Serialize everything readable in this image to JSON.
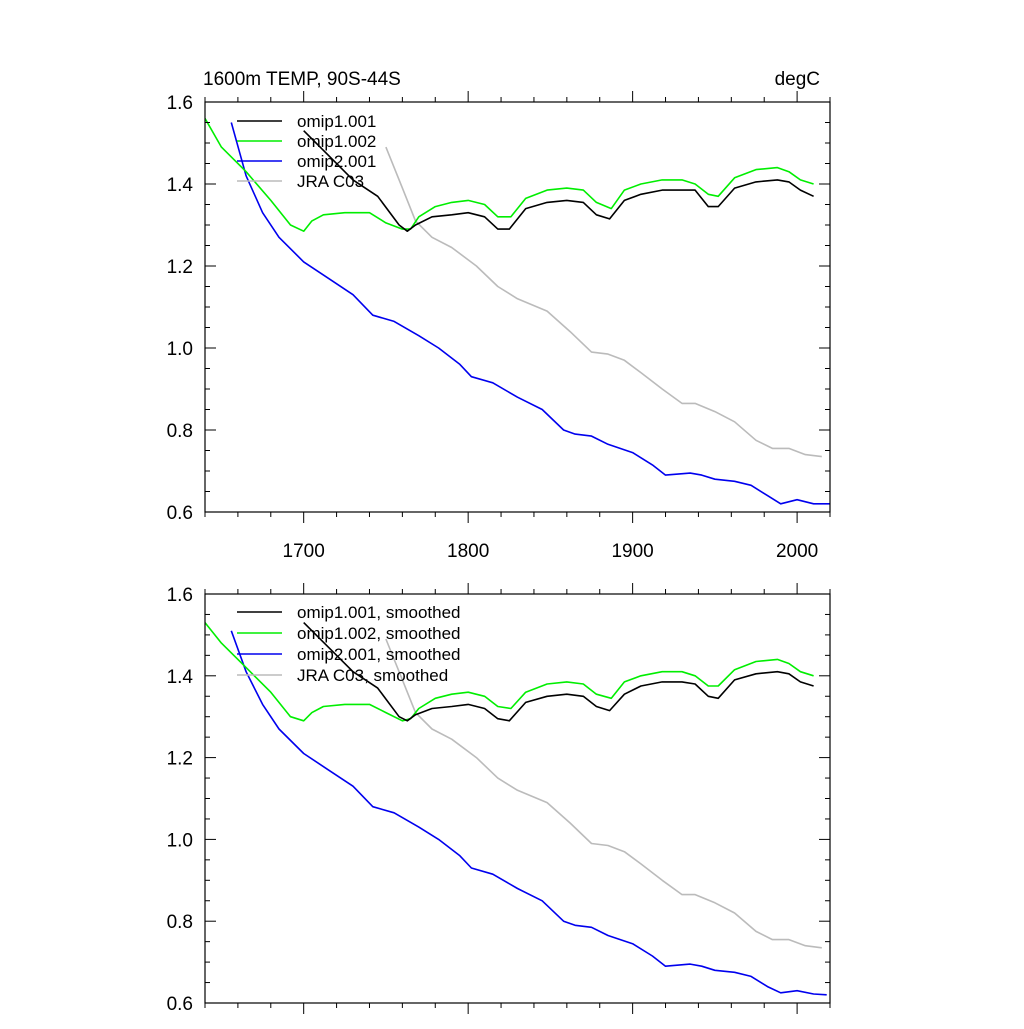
{
  "chart_data": [
    {
      "type": "line",
      "title": "1600m TEMP, 90S-44S",
      "units": "degC",
      "xlim": [
        1640,
        2020
      ],
      "ylim": [
        0.6,
        1.6
      ],
      "xticks": [
        1700,
        1800,
        1900,
        2000
      ],
      "yticks": [
        0.6,
        0.8,
        1.0,
        1.2,
        1.4,
        1.6
      ],
      "ytick_labels": [
        "0.6",
        "0.8",
        "1.0",
        "1.2",
        "1.4",
        "1.6"
      ],
      "xtick_labels": [
        "1700",
        "1800",
        "1900",
        "2000"
      ],
      "legend_position": "top-left",
      "series": [
        {
          "name": "omip1.001",
          "color": "#000000",
          "x": [
            1700,
            1715,
            1730,
            1745,
            1758,
            1763,
            1768,
            1778,
            1790,
            1800,
            1810,
            1818,
            1825,
            1835,
            1848,
            1860,
            1870,
            1878,
            1886,
            1895,
            1905,
            1918,
            1930,
            1938,
            1946,
            1952,
            1962,
            1975,
            1988,
            1995,
            2002,
            2010
          ],
          "y": [
            1.53,
            1.47,
            1.41,
            1.37,
            1.3,
            1.285,
            1.3,
            1.32,
            1.325,
            1.33,
            1.32,
            1.29,
            1.29,
            1.34,
            1.355,
            1.36,
            1.355,
            1.325,
            1.315,
            1.36,
            1.375,
            1.385,
            1.385,
            1.385,
            1.345,
            1.345,
            1.39,
            1.405,
            1.41,
            1.405,
            1.385,
            1.37
          ]
        },
        {
          "name": "omip1.002",
          "color": "#00ee00",
          "x": [
            1640,
            1650,
            1665,
            1680,
            1692,
            1700,
            1705,
            1712,
            1725,
            1740,
            1750,
            1760,
            1765,
            1770,
            1780,
            1790,
            1800,
            1810,
            1818,
            1826,
            1835,
            1848,
            1860,
            1870,
            1878,
            1887,
            1895,
            1905,
            1918,
            1930,
            1938,
            1946,
            1952,
            1962,
            1975,
            1988,
            1995,
            2002,
            2010
          ],
          "y": [
            1.56,
            1.49,
            1.43,
            1.36,
            1.3,
            1.285,
            1.31,
            1.325,
            1.33,
            1.33,
            1.305,
            1.29,
            1.29,
            1.32,
            1.345,
            1.355,
            1.36,
            1.35,
            1.32,
            1.32,
            1.365,
            1.385,
            1.39,
            1.385,
            1.355,
            1.34,
            1.385,
            1.4,
            1.41,
            1.41,
            1.4,
            1.375,
            1.37,
            1.415,
            1.435,
            1.44,
            1.43,
            1.41,
            1.4
          ]
        },
        {
          "name": "omip2.001",
          "color": "#0000ee",
          "x": [
            1656,
            1665,
            1675,
            1685,
            1700,
            1715,
            1730,
            1742,
            1755,
            1770,
            1782,
            1795,
            1802,
            1815,
            1830,
            1845,
            1858,
            1865,
            1875,
            1885,
            1900,
            1912,
            1920,
            1935,
            1942,
            1950,
            1962,
            1972,
            1982,
            1990,
            2000,
            2010,
            2020
          ],
          "y": [
            1.55,
            1.42,
            1.33,
            1.27,
            1.21,
            1.17,
            1.13,
            1.08,
            1.065,
            1.03,
            1.0,
            0.96,
            0.93,
            0.915,
            0.88,
            0.85,
            0.8,
            0.79,
            0.785,
            0.765,
            0.745,
            0.715,
            0.69,
            0.695,
            0.69,
            0.68,
            0.675,
            0.665,
            0.64,
            0.62,
            0.63,
            0.62,
            0.62
          ]
        },
        {
          "name": "JRA C03",
          "color": "#bbbbbb",
          "x": [
            1750,
            1760,
            1768,
            1778,
            1790,
            1805,
            1818,
            1830,
            1848,
            1862,
            1875,
            1885,
            1895,
            1905,
            1918,
            1930,
            1938,
            1950,
            1962,
            1975,
            1985,
            1995,
            2005,
            2015
          ],
          "y": [
            1.49,
            1.39,
            1.31,
            1.27,
            1.245,
            1.2,
            1.15,
            1.12,
            1.09,
            1.04,
            0.99,
            0.985,
            0.97,
            0.94,
            0.9,
            0.865,
            0.865,
            0.845,
            0.82,
            0.775,
            0.755,
            0.755,
            0.74,
            0.735
          ]
        }
      ]
    },
    {
      "type": "line",
      "xlim": [
        1640,
        2020
      ],
      "ylim": [
        0.6,
        1.6
      ],
      "xticks": [
        1700,
        1800,
        1900,
        2000
      ],
      "yticks": [
        0.6,
        0.8,
        1.0,
        1.2,
        1.4,
        1.6
      ],
      "ytick_labels": [
        "0.6",
        "0.8",
        "1.0",
        "1.2",
        "1.4",
        "1.6"
      ],
      "legend_position": "top-left",
      "series": [
        {
          "name": "omip1.001, smoothed",
          "color": "#000000",
          "x": [
            1700,
            1715,
            1730,
            1745,
            1758,
            1763,
            1768,
            1778,
            1790,
            1800,
            1810,
            1818,
            1825,
            1835,
            1848,
            1860,
            1870,
            1878,
            1886,
            1895,
            1905,
            1918,
            1930,
            1938,
            1946,
            1952,
            1962,
            1975,
            1988,
            1995,
            2002,
            2010
          ],
          "y": [
            1.53,
            1.47,
            1.41,
            1.37,
            1.3,
            1.29,
            1.305,
            1.32,
            1.325,
            1.33,
            1.32,
            1.295,
            1.29,
            1.335,
            1.35,
            1.355,
            1.35,
            1.325,
            1.315,
            1.355,
            1.375,
            1.385,
            1.385,
            1.38,
            1.35,
            1.345,
            1.39,
            1.405,
            1.41,
            1.405,
            1.385,
            1.375
          ]
        },
        {
          "name": "omip1.002, smoothed",
          "color": "#00ee00",
          "x": [
            1640,
            1650,
            1665,
            1680,
            1692,
            1700,
            1705,
            1712,
            1725,
            1740,
            1750,
            1760,
            1765,
            1770,
            1780,
            1790,
            1800,
            1810,
            1818,
            1826,
            1835,
            1848,
            1860,
            1870,
            1878,
            1887,
            1895,
            1905,
            1918,
            1930,
            1938,
            1946,
            1952,
            1962,
            1975,
            1988,
            1995,
            2002,
            2010
          ],
          "y": [
            1.53,
            1.48,
            1.42,
            1.36,
            1.3,
            1.29,
            1.31,
            1.325,
            1.33,
            1.33,
            1.31,
            1.29,
            1.295,
            1.32,
            1.345,
            1.355,
            1.36,
            1.35,
            1.325,
            1.32,
            1.36,
            1.38,
            1.385,
            1.38,
            1.355,
            1.345,
            1.385,
            1.4,
            1.41,
            1.41,
            1.4,
            1.375,
            1.375,
            1.415,
            1.435,
            1.44,
            1.43,
            1.41,
            1.4
          ]
        },
        {
          "name": "omip2.001, smoothed",
          "color": "#0000ee",
          "x": [
            1656,
            1665,
            1675,
            1685,
            1700,
            1715,
            1730,
            1742,
            1755,
            1770,
            1782,
            1795,
            1802,
            1815,
            1830,
            1845,
            1858,
            1865,
            1875,
            1885,
            1900,
            1912,
            1920,
            1935,
            1942,
            1950,
            1962,
            1972,
            1982,
            1990,
            2000,
            2010,
            2018
          ],
          "y": [
            1.51,
            1.41,
            1.33,
            1.27,
            1.21,
            1.17,
            1.13,
            1.08,
            1.065,
            1.03,
            1.0,
            0.96,
            0.93,
            0.915,
            0.88,
            0.85,
            0.8,
            0.79,
            0.785,
            0.765,
            0.745,
            0.715,
            0.69,
            0.695,
            0.69,
            0.68,
            0.675,
            0.665,
            0.64,
            0.625,
            0.63,
            0.622,
            0.62
          ]
        },
        {
          "name": "JRA C03, smoothed",
          "color": "#bbbbbb",
          "x": [
            1750,
            1760,
            1768,
            1778,
            1790,
            1805,
            1818,
            1830,
            1848,
            1862,
            1875,
            1885,
            1895,
            1905,
            1918,
            1930,
            1938,
            1950,
            1962,
            1975,
            1985,
            1995,
            2005,
            2015
          ],
          "y": [
            1.49,
            1.39,
            1.31,
            1.27,
            1.245,
            1.2,
            1.15,
            1.12,
            1.09,
            1.04,
            0.99,
            0.985,
            0.97,
            0.94,
            0.9,
            0.865,
            0.865,
            0.845,
            0.82,
            0.775,
            0.755,
            0.755,
            0.74,
            0.735
          ]
        }
      ]
    }
  ]
}
